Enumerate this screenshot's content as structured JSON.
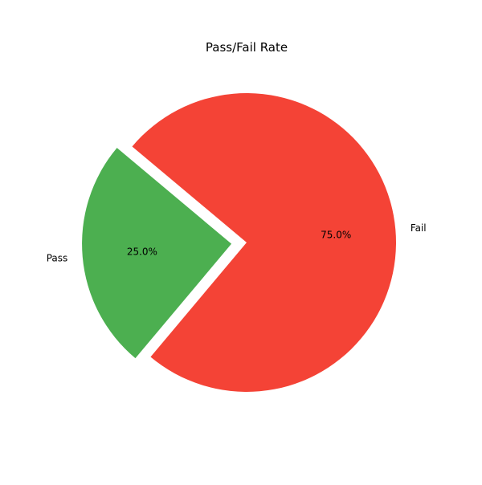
{
  "chart_data": {
    "type": "pie",
    "title": "Pass/Fail Rate",
    "labels": [
      "Pass",
      "Fail"
    ],
    "values": [
      25,
      75
    ],
    "percent_labels": [
      "25.0%",
      "75.0%"
    ],
    "colors": [
      "#4caf50",
      "#f44336"
    ],
    "exploded": [
      true,
      false
    ],
    "start_angle_deg": 140,
    "counterclockwise": true
  }
}
